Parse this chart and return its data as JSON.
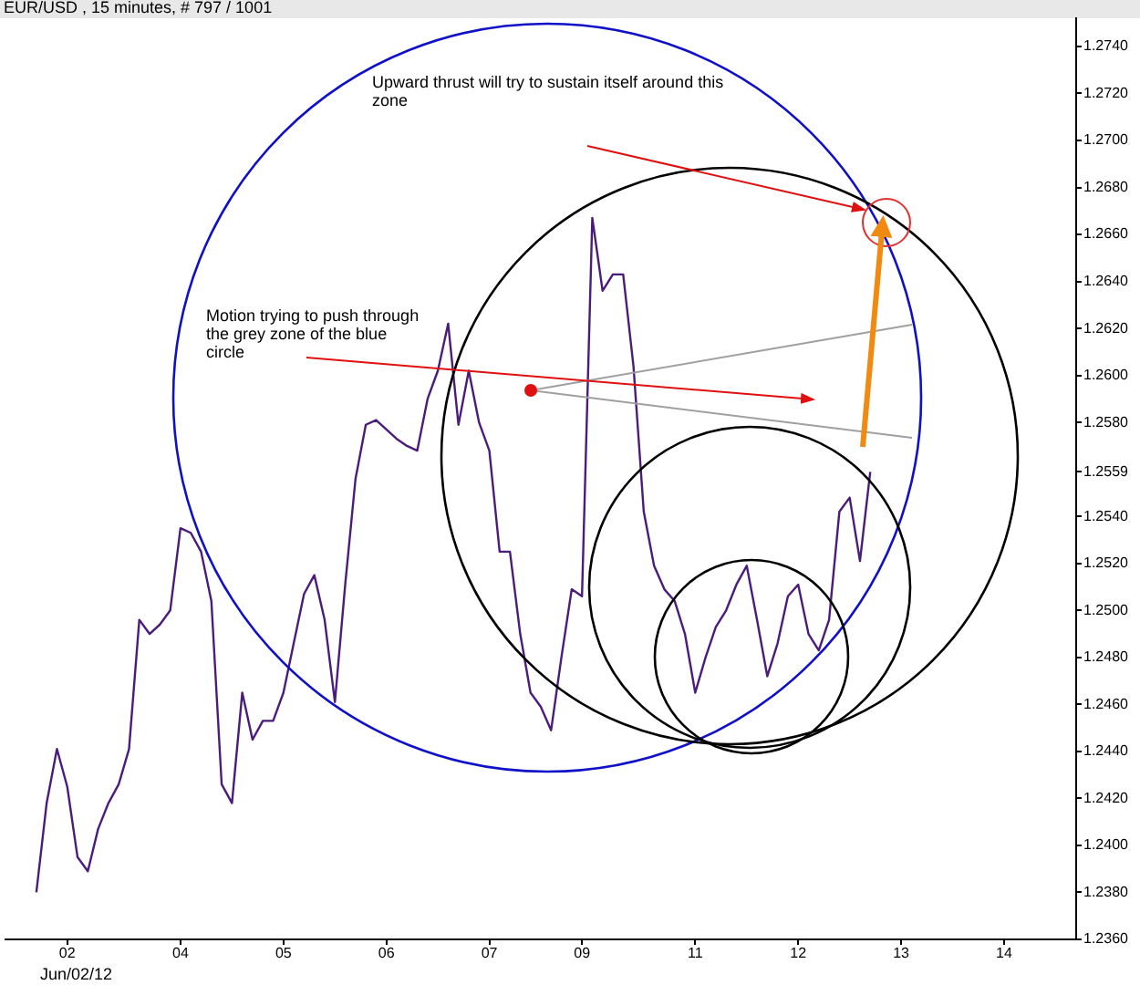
{
  "chart_data": {
    "type": "line",
    "title": "EUR/USD , 15 minutes, # 797 / 1001",
    "annotations": [
      "Upward thrust will try to sustain itself around this zone",
      "Motion trying to push through the grey zone of the blue circle",
      "Jun/02/12"
    ],
    "categories": [
      null,
      null,
      null,
      null,
      null,
      null,
      "02",
      null,
      null,
      null,
      null,
      null,
      null,
      null,
      null,
      null,
      null,
      "04",
      null,
      null,
      null,
      null,
      null,
      null,
      null,
      null,
      null,
      "05",
      null,
      null,
      null,
      null,
      null,
      null,
      null,
      null,
      null,
      "06",
      null,
      null,
      null,
      null,
      null,
      null,
      null,
      null,
      null,
      "07",
      null,
      null,
      null,
      null,
      null,
      null,
      null,
      null,
      "09",
      null,
      null,
      null,
      null,
      null,
      null,
      null,
      null,
      null,
      null,
      "11",
      null,
      null,
      null,
      null,
      null,
      null,
      null,
      null,
      null,
      "12",
      null,
      null,
      null,
      null,
      null,
      null,
      null,
      null,
      null,
      "13",
      null,
      null,
      null,
      null,
      null,
      null,
      null,
      null,
      null,
      "14",
      null,
      null,
      null,
      null,
      null,
      null,
      null
    ],
    "series": [
      {
        "color": "#4b1c7a",
        "values": [
          null,
          null,
          null,
          1.238,
          1.2418,
          1.2441,
          1.2425,
          1.2395,
          1.2389,
          1.2407,
          1.2418,
          1.2426,
          1.2441,
          1.2496,
          1.249,
          1.2494,
          1.25,
          1.2535,
          1.2533,
          1.2525,
          1.2504,
          1.2426,
          1.2418,
          1.2465,
          1.2445,
          1.2453,
          1.2453,
          1.2465,
          1.2486,
          1.2507,
          1.2515,
          1.2496,
          1.2461,
          1.2511,
          1.2556,
          1.2579,
          1.2581,
          1.2577,
          1.2573,
          1.257,
          1.2568,
          1.259,
          1.2602,
          1.2622,
          1.2579,
          1.2602,
          1.258,
          1.2568,
          1.2525,
          1.2525,
          1.249,
          1.2465,
          1.2459,
          1.2449,
          1.248,
          1.2509,
          1.2506,
          1.2667,
          1.2636,
          1.2643,
          1.2643,
          1.2604,
          1.2542,
          1.2519,
          1.2509,
          1.2504,
          1.249,
          1.2465,
          1.248,
          1.2493,
          1.25,
          1.2511,
          1.2519,
          1.2496,
          1.2472,
          1.2486,
          1.2506,
          1.2511,
          1.249,
          1.2483,
          1.2496,
          1.2542,
          1.2548,
          1.2521,
          1.2559,
          null,
          null,
          null,
          null,
          null,
          null,
          null,
          null,
          null,
          null,
          null,
          null,
          null,
          null,
          null,
          null,
          null,
          null,
          null,
          null
        ]
      }
    ],
    "ylim": [
      1.236,
      1.2752
    ],
    "yticks": [
      {
        "value": 1.236,
        "label": "1.2360"
      },
      {
        "value": 1.238,
        "label": "1.2380"
      },
      {
        "value": 1.24,
        "label": "1.2400"
      },
      {
        "value": 1.242,
        "label": "1.2420"
      },
      {
        "value": 1.244,
        "label": "1.2440"
      },
      {
        "value": 1.246,
        "label": "1.2460"
      },
      {
        "value": 1.248,
        "label": "1.2480"
      },
      {
        "value": 1.25,
        "label": "1.2500"
      },
      {
        "value": 1.252,
        "label": "1.2520"
      },
      {
        "value": 1.254,
        "label": "1.2540"
      },
      1.2559,
      {
        "value": 1.258,
        "label": "1.2580"
      },
      {
        "value": 1.26,
        "label": "1.2600"
      },
      {
        "value": 1.262,
        "label": "1.2620"
      },
      {
        "value": 1.264,
        "label": "1.2640"
      },
      {
        "value": 1.266,
        "label": "1.2660"
      },
      {
        "value": 1.268,
        "label": "1.2680"
      },
      {
        "value": 1.27,
        "label": "1.2700"
      },
      {
        "value": 1.272,
        "label": "1.2720"
      },
      {
        "value": 1.274,
        "label": "1.2740"
      }
    ],
    "grid": false,
    "legend": false,
    "marker": "none",
    "line_style": "solid"
  }
}
